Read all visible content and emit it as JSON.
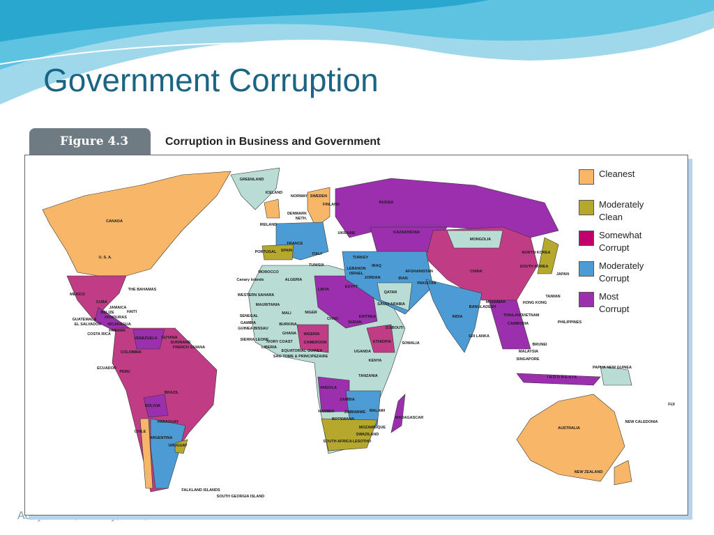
{
  "title": "Government Corruption",
  "footer": "Adeyl Khan, Faculty, BBA, NSU",
  "figure": {
    "tab": "Figure 4.3",
    "heading": "Corruption in Business and Government",
    "legend": [
      {
        "label": "Cleanest",
        "color": "#f8b768"
      },
      {
        "label": "Moderately Clean",
        "color": "#b5a82c"
      },
      {
        "label": "Somewhat Corrupt",
        "color": "#c0006b"
      },
      {
        "label": "Moderately Corrupt",
        "color": "#4d9bd4"
      },
      {
        "label": "Most Corrupt",
        "color": "#9b2fae"
      }
    ],
    "map_labels": [
      "GREENLAND",
      "ICELAND",
      "CANADA",
      "U. S. A.",
      "MEXICO",
      "THE BAHAMAS",
      "CUBA",
      "JAMAICA",
      "HAITI",
      "BELIZE",
      "HONDURAS",
      "GUATEMALA",
      "EL SALVADOR",
      "NICARAGUA",
      "COSTA RICA",
      "PANAMA",
      "VENEZUELA",
      "GUYANA",
      "SURINAME",
      "FRENCH GUIANA",
      "COLOMBIA",
      "ECUADOR",
      "PERU",
      "BRAZIL",
      "BOLIVIA",
      "PARAGUAY",
      "CHILE",
      "ARGENTINA",
      "URUGUAY",
      "FALKLAND ISLANDS",
      "SOUTH GEORGIA ISLAND",
      "NORWAY",
      "SWEDEN",
      "FINLAND",
      "IRELAND",
      "DENMARK",
      "NETH.",
      "FRANCE",
      "PORTUGAL",
      "SPAIN",
      "ITALY",
      "RUSSIA",
      "UKRAINE",
      "KAZAKHSTAN",
      "MONGOLIA",
      "CHINA",
      "NORTH KOREA",
      "SOUTH KOREA",
      "JAPAN",
      "TAIWAN",
      "HONG KONG",
      "PHILIPPINES",
      "VIETNAM",
      "BANGLADESH",
      "MYANMAR",
      "INDIA",
      "SRI LANKA",
      "PAKISTAN",
      "AFGHANISTAN",
      "IRAN",
      "TURKEY",
      "ISRAEL",
      "JORDAN",
      "IRAQ",
      "SAUDI ARABIA",
      "QATAR",
      "LEBANON",
      "MOROCCO",
      "Canary Islands",
      "ALGERIA",
      "TUNISIA",
      "LIBYA",
      "EGYPT",
      "WESTERN SAHARA",
      "MAURITANIA",
      "MALI",
      "NIGER",
      "CHAD",
      "SUDAN",
      "SENEGAL",
      "GAMBIA",
      "GUINEA BISSAU",
      "BURKINA",
      "GHANA",
      "NIGERIA",
      "SIERRA LEONE",
      "LIBERIA",
      "IVORY COAST",
      "CAMEROON",
      "EQUATORIAL GUINEA",
      "SAO TOME & PRINCIPE",
      "ETHIOPIA",
      "SOMALIA",
      "DJIBOUTI",
      "ERITREA",
      "KENYA",
      "UGANDA",
      "ZAIRE",
      "TANZANIA",
      "ANGOLA",
      "ZAMBIA",
      "MALAWI",
      "ZIMBABWE",
      "BOTSWANA",
      "NAMIBIA",
      "MOZAMBIQUE",
      "MADAGASCAR",
      "SWAZILAND",
      "SOUTH AFRICA",
      "LESOTHO",
      "MALAYSIA",
      "SINGAPORE",
      "BRUNEI",
      "I N D O N E S I A",
      "PAPUA NEW GUINEA",
      "AUSTRALIA",
      "NEW ZEALAND",
      "NEW CALEDONIA",
      "FIJI",
      "THAILAND",
      "CAMBODIA"
    ]
  }
}
